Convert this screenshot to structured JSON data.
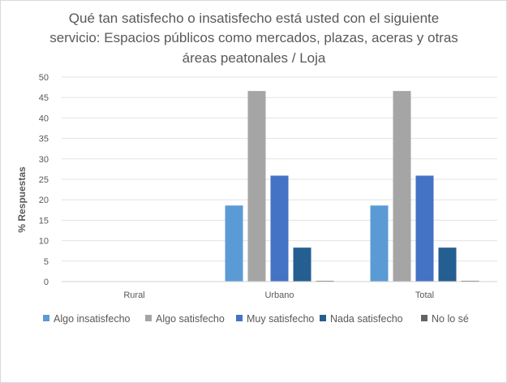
{
  "chart_data": {
    "type": "bar",
    "title_lines": [
      "Qué tan satisfecho o insatisfecho está usted con el siguiente",
      "servicio: Espacios públicos como mercados, plazas, aceras y otras",
      "áreas peatonales / Loja"
    ],
    "ylabel": "% Respuestas",
    "xlabel": "",
    "ylim": [
      0,
      50
    ],
    "yticks": [
      0,
      5,
      10,
      15,
      20,
      25,
      30,
      35,
      40,
      45,
      50
    ],
    "grid": true,
    "legend_position": "bottom",
    "categories": [
      "Rural",
      "Urbano",
      "Total"
    ],
    "series": [
      {
        "name": "Algo insatisfecho",
        "color": "#5b9bd5",
        "values": [
          0,
          18.6,
          18.6
        ]
      },
      {
        "name": "Algo satisfecho",
        "color": "#a5a5a5",
        "values": [
          0,
          46.6,
          46.6
        ]
      },
      {
        "name": "Muy satisfecho",
        "color": "#4472c4",
        "values": [
          0,
          25.9,
          25.9
        ]
      },
      {
        "name": "Nada satisfecho",
        "color": "#255e91",
        "values": [
          0,
          8.3,
          8.3
        ]
      },
      {
        "name": "No lo sé",
        "color": "#636363",
        "values": [
          0,
          0.2,
          0.2
        ]
      }
    ]
  }
}
